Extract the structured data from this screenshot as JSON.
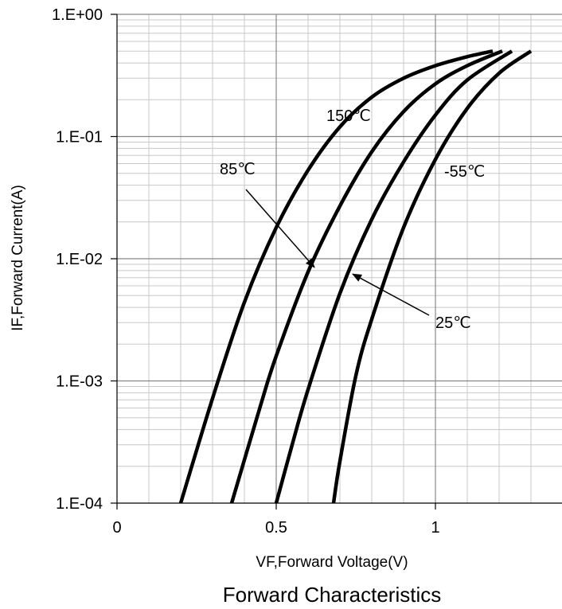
{
  "chart_data": {
    "type": "line",
    "title": "Forward Characteristics",
    "xlabel": "VF,Forward Voltage(V)",
    "ylabel": "IF,Forward Current(A)",
    "xlim": [
      0,
      1.4
    ],
    "ylim": [
      0.0001,
      1
    ],
    "yscale": "log",
    "grid": true,
    "legend": "none",
    "x_ticks": [
      {
        "value": 0,
        "label": "0"
      },
      {
        "value": 0.5,
        "label": "0.5"
      },
      {
        "value": 1,
        "label": "1"
      }
    ],
    "y_ticks": [
      {
        "value": 1,
        "label": "1.E+00"
      },
      {
        "value": 0.1,
        "label": "1.E-01"
      },
      {
        "value": 0.01,
        "label": "1.E-02"
      },
      {
        "value": 0.001,
        "label": "1.E-03"
      },
      {
        "value": 0.0001,
        "label": "1.E-04"
      }
    ],
    "series": [
      {
        "label": "150℃",
        "points": [
          [
            0.2,
            0.0001
          ],
          [
            0.3,
            0.00072
          ],
          [
            0.4,
            0.0044
          ],
          [
            0.5,
            0.018
          ],
          [
            0.6,
            0.053
          ],
          [
            0.7,
            0.12
          ],
          [
            0.8,
            0.21
          ],
          [
            0.9,
            0.3
          ],
          [
            1.0,
            0.38
          ],
          [
            1.1,
            0.45
          ],
          [
            1.18,
            0.5
          ]
        ]
      },
      {
        "label": "85℃",
        "points": [
          [
            0.36,
            0.0001
          ],
          [
            0.45,
            0.00062
          ],
          [
            0.5,
            0.0016
          ],
          [
            0.6,
            0.0078
          ],
          [
            0.7,
            0.027
          ],
          [
            0.8,
            0.075
          ],
          [
            0.9,
            0.16
          ],
          [
            1.0,
            0.27
          ],
          [
            1.1,
            0.38
          ],
          [
            1.21,
            0.5
          ]
        ]
      },
      {
        "label": "25℃",
        "points": [
          [
            0.5,
            0.0001
          ],
          [
            0.55,
            0.0003
          ],
          [
            0.6,
            0.00085
          ],
          [
            0.7,
            0.0052
          ],
          [
            0.8,
            0.021
          ],
          [
            0.9,
            0.062
          ],
          [
            1.0,
            0.15
          ],
          [
            1.1,
            0.29
          ],
          [
            1.24,
            0.5
          ]
        ]
      },
      {
        "label": "-55℃",
        "points": [
          [
            0.68,
            0.0001
          ],
          [
            0.7,
            0.00022
          ],
          [
            0.75,
            0.0011
          ],
          [
            0.8,
            0.0032
          ],
          [
            0.9,
            0.018
          ],
          [
            1.0,
            0.065
          ],
          [
            1.1,
            0.17
          ],
          [
            1.2,
            0.33
          ],
          [
            1.3,
            0.5
          ]
        ]
      }
    ],
    "annotations": [
      {
        "text": "150℃",
        "target": "150℃"
      },
      {
        "text": "85℃",
        "target": "85℃",
        "arrow_to": [
          0.62,
          0.0085
        ]
      },
      {
        "text": "25℃",
        "target": "25℃",
        "arrow_to": [
          0.74,
          0.0075
        ]
      },
      {
        "text": "-55℃",
        "target": "-55℃"
      }
    ]
  }
}
